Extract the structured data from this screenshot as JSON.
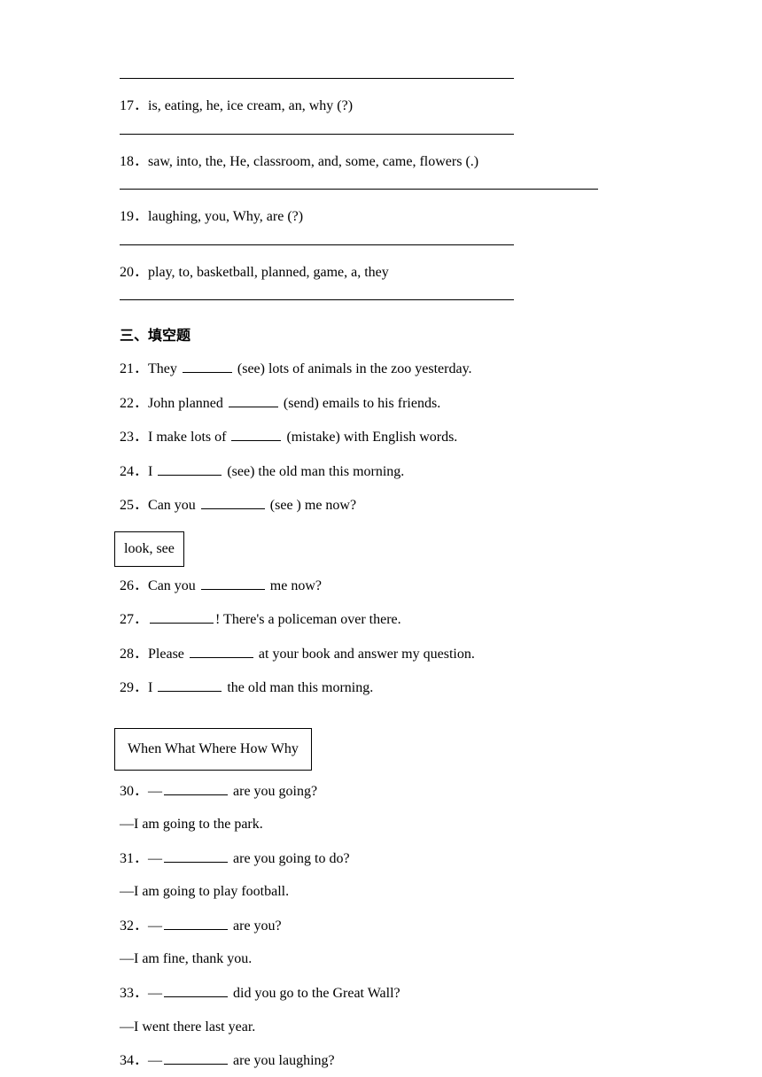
{
  "q17": {
    "num": "17．",
    "text": "is, eating, he, ice cream, an, why (?)"
  },
  "q18": {
    "num": "18．",
    "text": "saw,  into,  the,  He,  classroom,  and,  some,  came,  flowers  (.)"
  },
  "q19": {
    "num": "19．",
    "text": "laughing, you, Why, are (?)"
  },
  "q20": {
    "num": "20．",
    "text": "play, to, basketball, planned, game, a, they"
  },
  "section3": "三、填空题",
  "q21": {
    "num": "21．",
    "pre": "They ",
    "post": " (see) lots of animals in the zoo yesterday."
  },
  "q22": {
    "num": "22．",
    "pre": "John planned ",
    "post": " (send) emails to his friends."
  },
  "q23": {
    "num": "23．",
    "pre": "I make lots of ",
    "post": " (mistake) with English words."
  },
  "q24": {
    "num": "24．",
    "pre": "I ",
    "post": " (see) the old man this morning."
  },
  "q25": {
    "num": "25．",
    "pre": "Can you ",
    "post": " (see ) me now?"
  },
  "wordbox1": "look,  see",
  "q26": {
    "num": "26．",
    "pre": "Can you ",
    "post": " me now?"
  },
  "q27": {
    "num": "27．",
    "post": "! There's a policeman over there."
  },
  "q28": {
    "num": "28．",
    "pre": "Please ",
    "post": " at your book and answer my question."
  },
  "q29": {
    "num": "29．",
    "pre": "I ",
    "post": " the old man this morning."
  },
  "wordbox2": "When   What   Where   How   Why",
  "q30": {
    "num": "30．",
    "pre": "—",
    "post": " are you going?",
    "answer": "—I am going to the park."
  },
  "q31": {
    "num": "31．",
    "pre": "—",
    "post": " are you going to do?",
    "answer": "—I am going to play football."
  },
  "q32": {
    "num": "32．",
    "pre": "—",
    "post": " are you?",
    "answer": "—I am fine, thank you."
  },
  "q33": {
    "num": "33．",
    "pre": "—",
    "post": " did you go to the Great Wall?",
    "answer": "—I went there last year."
  },
  "q34": {
    "num": "34．",
    "pre": "—",
    "post": " are you laughing?"
  }
}
